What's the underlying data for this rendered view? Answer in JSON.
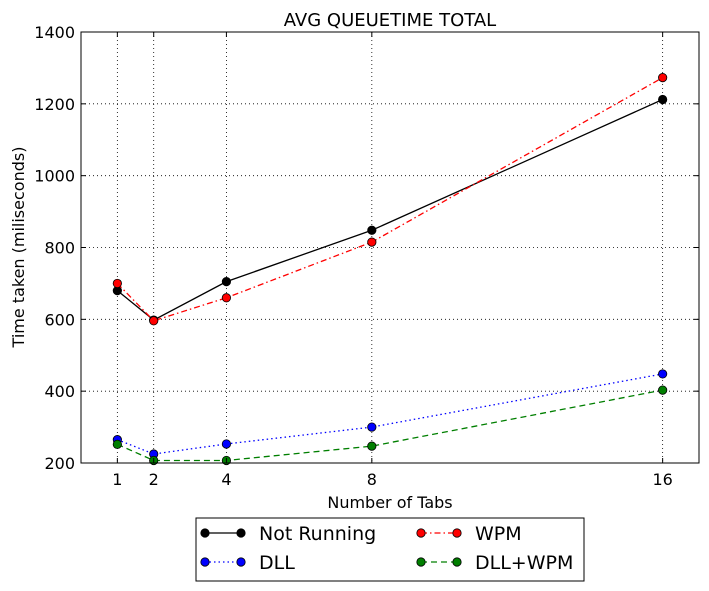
{
  "chart_data": {
    "type": "line",
    "title": "AVG QUEUETIME TOTAL",
    "xlabel": "Number of Tabs",
    "ylabel": "Time taken (miliseconds)",
    "xlim": [
      0,
      17
    ],
    "ylim": [
      200,
      1400
    ],
    "x_ticks": [
      "1",
      "2",
      "4",
      "8",
      "16"
    ],
    "y_ticks": [
      "200",
      "400",
      "600",
      "800",
      "1000",
      "1200",
      "1400"
    ],
    "grid": true,
    "legend_position": "below plot, centered, two columns",
    "x": [
      1,
      2,
      4,
      8,
      16
    ],
    "series": [
      {
        "name": "Not Running",
        "color": "#000000",
        "line_style": "solid",
        "values": [
          680,
          598,
          705,
          848,
          1212
        ]
      },
      {
        "name": "WPM",
        "color": "#ff0000",
        "line_style": "dashdot",
        "values": [
          700,
          596,
          660,
          815,
          1273
        ]
      },
      {
        "name": "DLL",
        "color": "#0000ff",
        "line_style": "dotted",
        "values": [
          265,
          225,
          253,
          300,
          448
        ]
      },
      {
        "name": "DLL+WPM",
        "color": "#007f00",
        "line_style": "dashed",
        "values": [
          252,
          207,
          207,
          247,
          403
        ]
      }
    ]
  }
}
